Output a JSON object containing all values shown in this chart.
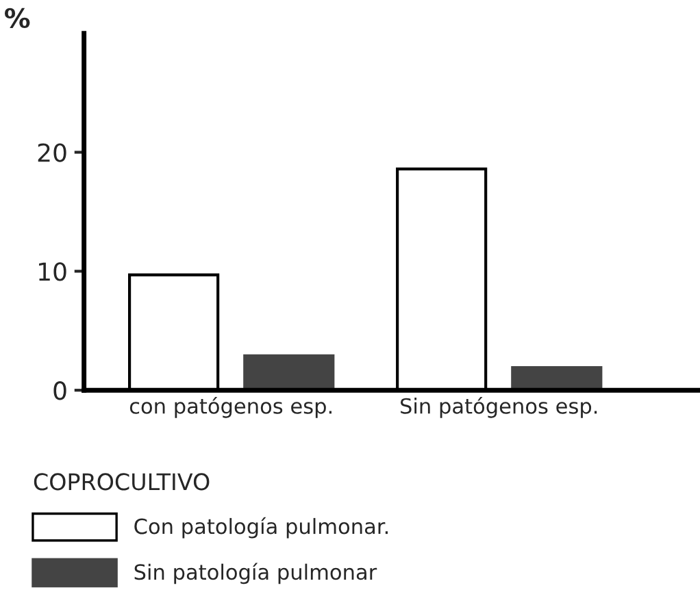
{
  "chart_data": {
    "type": "bar",
    "ylabel": "%",
    "categories": [
      "con patógenos esp.",
      "Sin patógenos esp."
    ],
    "series": [
      {
        "name": "Con patología pulmonar.",
        "color": "#ffffff",
        "values": [
          9.7,
          18.6
        ]
      },
      {
        "name": "Sin patología pulmonar",
        "color": "#444444",
        "values": [
          2.9,
          1.9
        ]
      }
    ],
    "legend_title": "COPROCULTIVO",
    "legend": "bottom",
    "ylim": [
      0,
      30
    ],
    "yticks": [
      0,
      10,
      20
    ],
    "grid": false
  }
}
